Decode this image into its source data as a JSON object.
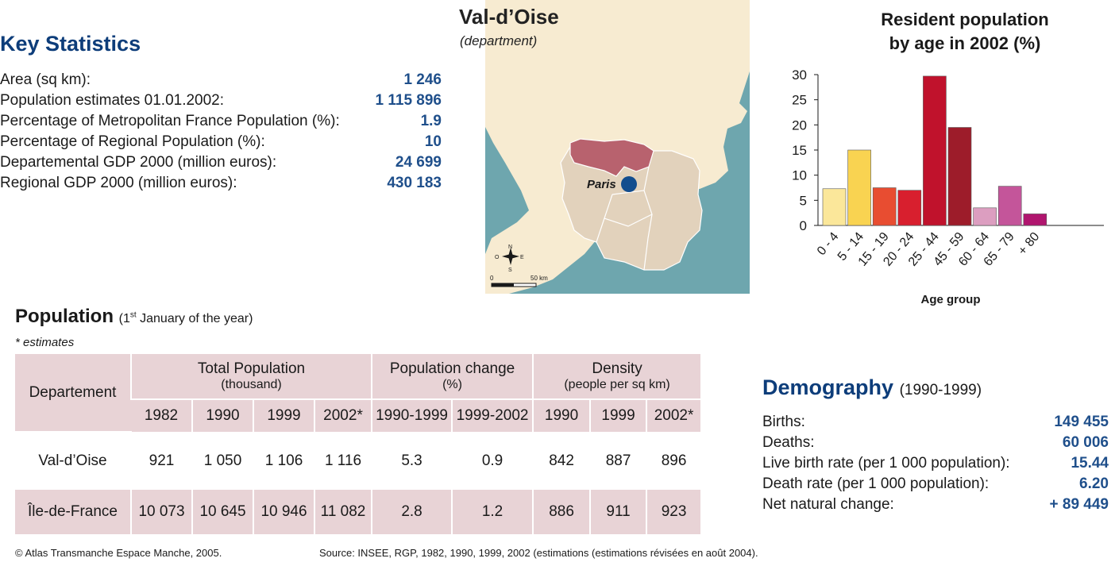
{
  "key_stats": {
    "title": "Key Statistics",
    "items": [
      {
        "label": "Area (sq km):",
        "value": "1 246"
      },
      {
        "label": "Population estimates 01.01.2002:",
        "value": "1 115 896"
      },
      {
        "label": "Percentage of Metropolitan France Population (%):",
        "value": "1.9"
      },
      {
        "label": "Percentage of Regional Population (%):",
        "value": "10"
      },
      {
        "label": "Departemental GDP 2000 (million euros):",
        "value": "24 699"
      },
      {
        "label": "Regional GDP 2000 (million euros):",
        "value": "430 183"
      }
    ]
  },
  "map": {
    "title": "Val-d’Oise",
    "subtitle": "(department)",
    "city_label": "Paris",
    "scale_start": "0",
    "scale_end": "50 km",
    "compass": {
      "n": "N",
      "s": "S",
      "e": "E",
      "w": "O"
    },
    "colors": {
      "land": "#f7ebd1",
      "sea": "#6ea6ae",
      "region": "#e2d2bc",
      "department": "#b8626e",
      "city": "#124d8e",
      "sea_light": "#d6e7f2"
    }
  },
  "chart_data": {
    "type": "bar",
    "title_lines": [
      "Resident population",
      "by age in 2002 (%)"
    ],
    "xlabel": "Age group",
    "ylabel": "",
    "ylim": [
      0,
      30
    ],
    "yticks": [
      0,
      5,
      10,
      15,
      20,
      25,
      30
    ],
    "categories": [
      "0 - 4",
      "5 - 14",
      "15 - 19",
      "20 - 24",
      "25 - 44",
      "45 - 59",
      "60 - 64",
      "65 - 79",
      "+ 80"
    ],
    "values": [
      7.3,
      15.0,
      7.5,
      7.0,
      29.7,
      19.5,
      3.5,
      7.8,
      2.3
    ],
    "colors": [
      "#fbe79a",
      "#f9d351",
      "#e84d31",
      "#d81f2e",
      "#c0122c",
      "#9d1c2a",
      "#dc9ec0",
      "#c4559a",
      "#b0156e"
    ],
    "grid": false
  },
  "population": {
    "title": "Population",
    "note_sup": "st",
    "note": "(1",
    "note_rest": " January of the year)",
    "estimates_note": "* estimates",
    "col_departement": "Departement",
    "groups": [
      {
        "title": "Total Population",
        "sub": "(thousand)"
      },
      {
        "title": "Population change",
        "sub": "(%)"
      },
      {
        "title": "Density",
        "sub": "(people per sq km)"
      }
    ],
    "years": [
      "1982",
      "1990",
      "1999",
      "2002*",
      "1990-1999",
      "1999-2002",
      "1990",
      "1999",
      "2002*"
    ],
    "rows": [
      {
        "name": "Val-d’Oise",
        "cells": [
          "921",
          "1 050",
          "1 106",
          "1 116",
          "5.3",
          "0.9",
          "842",
          "887",
          "896"
        ]
      },
      {
        "name": "Île-de-France",
        "cells": [
          "10 073",
          "10 645",
          "10 946",
          "11 082",
          "2.8",
          "1.2",
          "886",
          "911",
          "923"
        ]
      }
    ]
  },
  "demography": {
    "title": "Demography",
    "period": "(1990-1999)",
    "items": [
      {
        "label": "Births:",
        "value": "149 455"
      },
      {
        "label": "Deaths:",
        "value": "60 006"
      },
      {
        "label": "Live birth rate (per 1 000 population):",
        "value": "15.44"
      },
      {
        "label": "Death rate (per 1 000 population):",
        "value": "6.20"
      },
      {
        "label": "Net natural change:",
        "value": "+ 89 449"
      }
    ]
  },
  "footer": {
    "copyright": "© Atlas Transmanche Espace Manche, 2005.",
    "source": "Source: INSEE, RGP, 1982, 1990, 1999, 2002 (estimations (estimations révisées en août 2004)."
  }
}
